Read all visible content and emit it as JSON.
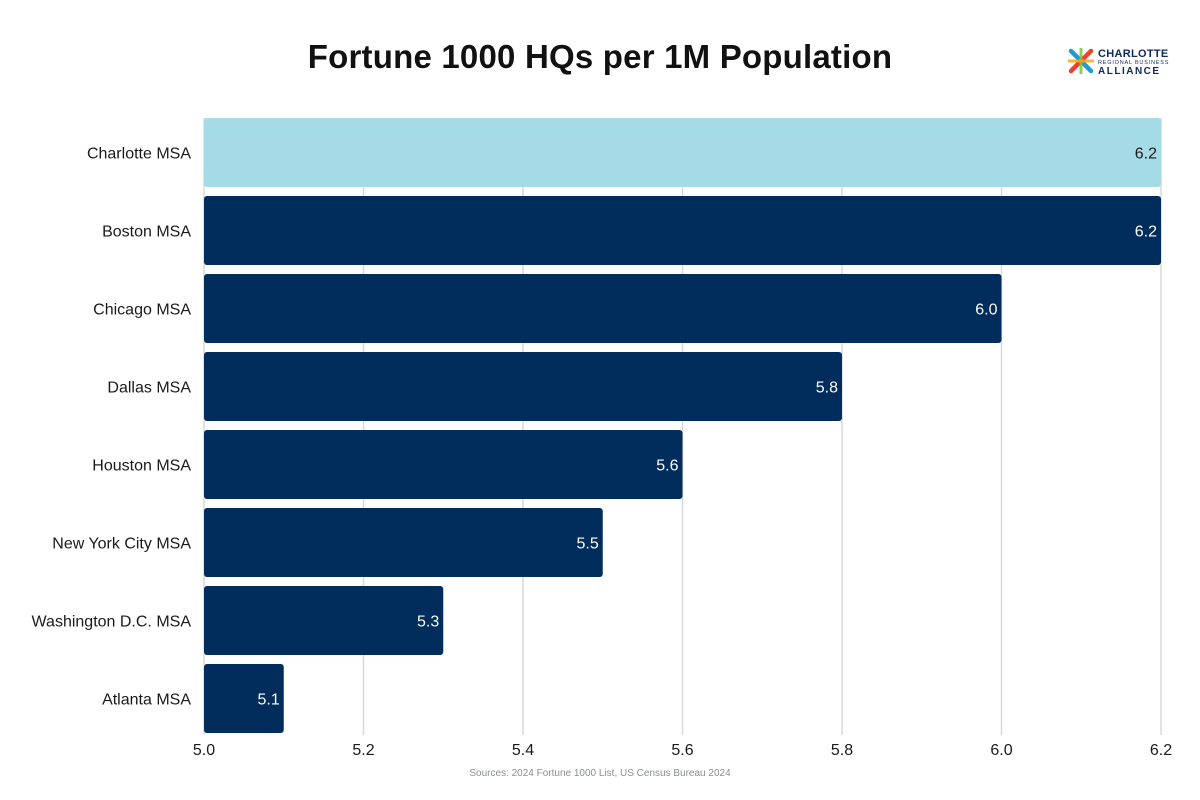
{
  "chart_data": {
    "type": "bar",
    "orientation": "horizontal",
    "title": "Fortune 1000 HQs per 1M Population",
    "categories": [
      "Charlotte MSA",
      "Boston MSA",
      "Chicago MSA",
      "Dallas MSA",
      "Houston MSA",
      "New York City MSA",
      "Washington D.C. MSA",
      "Atlanta MSA"
    ],
    "values": [
      6.2,
      6.2,
      6.0,
      5.8,
      5.6,
      5.5,
      5.3,
      5.1
    ],
    "value_labels": [
      "6.2",
      "6.2",
      "6.0",
      "5.8",
      "5.6",
      "5.5",
      "5.3",
      "5.1"
    ],
    "xlim": [
      5.0,
      6.2
    ],
    "xticks": [
      "5.0",
      "5.2",
      "5.4",
      "5.6",
      "5.8",
      "6.0",
      "6.2"
    ],
    "grid": "vertical",
    "highlight_index": 0,
    "colors": {
      "highlight": "#a5dbe6",
      "bar": "#002d5c",
      "grid": "#d9d9d9",
      "label_dark": "#1a1a1a",
      "label_light": "#ffffff"
    }
  },
  "logo": {
    "line1": "CHARLOTTE",
    "line2": "REGIONAL BUSINESS",
    "line3": "ALLIANCE"
  },
  "source": "Sources: 2024 Fortune 1000 List, US Census Bureau 2024"
}
